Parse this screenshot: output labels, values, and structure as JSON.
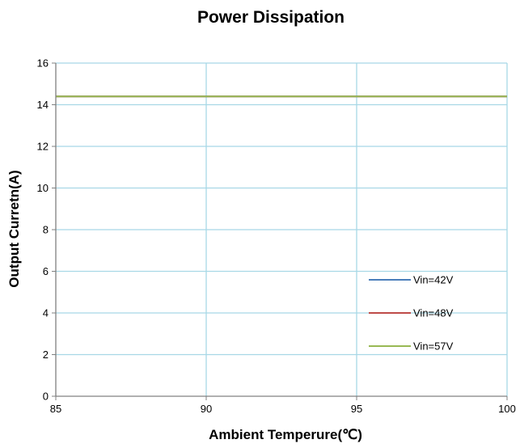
{
  "chart_data": {
    "type": "line",
    "title": "Power Dissipation",
    "xlabel": "Ambient  Temperure(℃)",
    "ylabel": "Output Curretn(A)",
    "xlim": [
      85,
      100
    ],
    "ylim": [
      0,
      16
    ],
    "xticks": [
      "85",
      "90",
      "95",
      "100"
    ],
    "yticks": [
      "0",
      "2",
      "4",
      "6",
      "8",
      "10",
      "12",
      "14",
      "16"
    ],
    "grid": true,
    "legend_position": "lower-right",
    "series": [
      {
        "name": "Vin=42V",
        "color": "#4a7ebb",
        "x": [
          85,
          100
        ],
        "y": [
          14.4,
          14.4
        ]
      },
      {
        "name": "Vin=48V",
        "color": "#be4b48",
        "x": [
          85,
          100
        ],
        "y": [
          14.4,
          14.4
        ]
      },
      {
        "name": "Vin=57V",
        "color": "#98b954",
        "x": [
          85,
          100
        ],
        "y": [
          14.4,
          14.4
        ]
      }
    ]
  },
  "colors": {
    "grid": "#a8d8e6",
    "axis": "#808080"
  }
}
